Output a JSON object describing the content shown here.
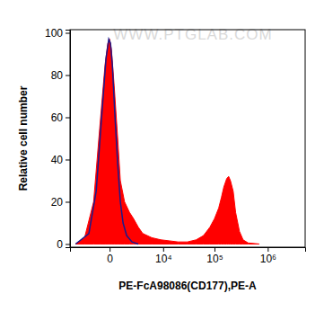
{
  "chart_data": {
    "type": "area",
    "watermark": "WWW.PTGLAB.COM",
    "x_label": "PE-FcA98086(CD177),PE-A",
    "y_label": "Relative cell number",
    "log": "x",
    "xlim": [
      -5000,
      5000000
    ],
    "xticks": [
      0,
      {
        "value": 10000,
        "label": "10⁴"
      },
      {
        "value": 100000,
        "label": "10⁵"
      },
      {
        "value": 1000000,
        "label": "10⁶"
      }
    ],
    "ylim": [
      -1.5,
      101.5
    ],
    "yticks": [
      0,
      20,
      40,
      60,
      80,
      100
    ],
    "grid": false,
    "series": [
      {
        "type": "area",
        "color": "#ff0000",
        "x": [
          -3700,
          -2150,
          -1100,
          -590,
          -240,
          -90,
          0,
          90,
          240,
          460,
          650,
          1000,
          1500,
          2000,
          2700,
          3500,
          5700,
          8900,
          13500,
          20000,
          30500,
          45000,
          62000,
          82000,
          100000,
          120000,
          135000,
          150000,
          170000,
          185000,
          200000,
          225000,
          250000,
          295000,
          345000,
          430000,
          690000
        ],
        "values": [
          0,
          3,
          20,
          55,
          85,
          95,
          97,
          92,
          75,
          50,
          30,
          20,
          15,
          12,
          8,
          5,
          3,
          2,
          1.5,
          1,
          1,
          2,
          4,
          8,
          12,
          17,
          22,
          27,
          31,
          32,
          30,
          25,
          15,
          6,
          2,
          0.5,
          0
        ]
      },
      {
        "type": "line",
        "color": "#1a1a8c",
        "x": [
          -3700,
          -1600,
          -870,
          -460,
          -185,
          -43,
          43,
          136,
          290,
          460,
          650,
          870,
          1200,
          1800,
          2700
        ],
        "values": [
          0,
          5,
          25,
          60,
          88,
          97,
          95,
          85,
          60,
          38,
          20,
          10,
          4,
          1,
          0
        ]
      }
    ]
  }
}
